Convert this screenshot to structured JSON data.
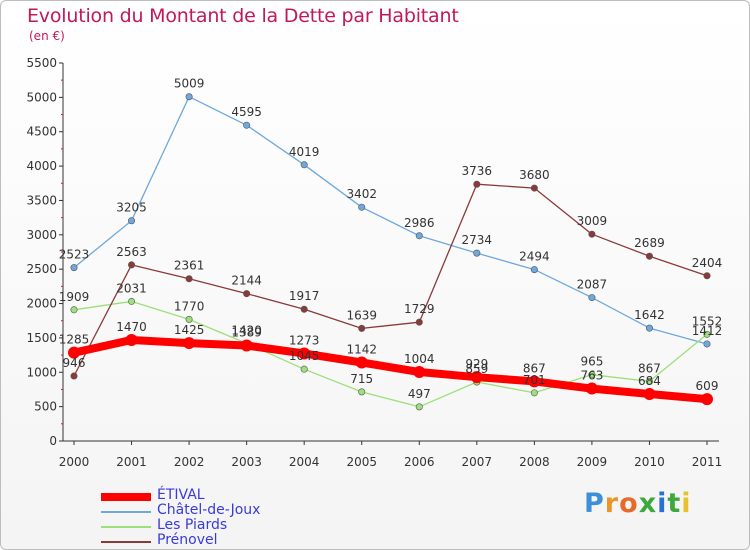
{
  "title": "Evolution du Montant de la Dette par Habitant",
  "subtitle": "(en €)",
  "chart_data": {
    "type": "line",
    "x": [
      "2000",
      "2001",
      "2002",
      "2003",
      "2004",
      "2005",
      "2006",
      "2007",
      "2008",
      "2009",
      "2010",
      "2011"
    ],
    "ylim": [
      0,
      5500
    ],
    "yticks": [
      0,
      500,
      1000,
      1500,
      2000,
      2500,
      3000,
      3500,
      4000,
      4500,
      5000,
      5500
    ],
    "grid": false,
    "legend_position": "bottom-left",
    "series": [
      {
        "name": "ÉTIVAL",
        "color": "#ff0000",
        "width": 8,
        "values": [
          1285,
          1470,
          1425,
          1389,
          1273,
          1142,
          1004,
          929,
          867,
          763,
          684,
          609
        ]
      },
      {
        "name": "Châtel-de-Joux",
        "color": "#6fa8dc",
        "width": 1.3,
        "values": [
          2523,
          3205,
          5009,
          4595,
          4019,
          3402,
          2986,
          2734,
          2494,
          2087,
          1642,
          1412
        ]
      },
      {
        "name": "Les Piards",
        "color": "#9be07a",
        "width": 1.3,
        "values": [
          1909,
          2031,
          1770,
          1420,
          1045,
          715,
          497,
          859,
          701,
          965,
          867,
          1552
        ]
      },
      {
        "name": "Prénovel",
        "color": "#8b3a3a",
        "width": 1.3,
        "values": [
          946,
          2563,
          2361,
          2144,
          1917,
          1639,
          1729,
          3736,
          3680,
          3009,
          2689,
          2404
        ]
      }
    ]
  },
  "brand": {
    "letters": [
      "P",
      "r",
      "o",
      "x",
      "i",
      "t",
      "i"
    ],
    "colors": [
      "#3d8fd6",
      "#e8962a",
      "#e86a2a",
      "#3da83d",
      "#2a6fd6",
      "#3da83d",
      "#e8c22a"
    ]
  }
}
